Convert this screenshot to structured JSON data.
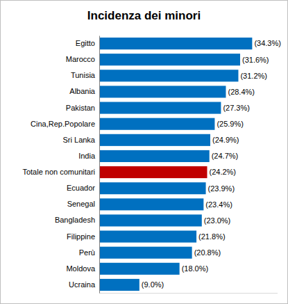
{
  "chart_data": {
    "type": "bar",
    "title": "Incidenza dei minori",
    "orientation": "horizontal",
    "categories": [
      "Egitto",
      "Marocco",
      "Tunisia",
      "Albania",
      "Pakistan",
      "Cina,Rep.Popolare",
      "Sri Lanka",
      "India",
      "Totale non comunitari",
      "Ecuador",
      "Senegal",
      "Bangladesh",
      "Filippine",
      "Perù",
      "Moldova",
      "Ucraina"
    ],
    "values": [
      34.3,
      31.6,
      31.2,
      28.4,
      27.3,
      25.9,
      24.9,
      24.7,
      24.2,
      23.9,
      23.4,
      23.0,
      21.8,
      20.8,
      18.0,
      9.0
    ],
    "value_labels": [
      "(34.3%)",
      "(31.6%)",
      "(31.2%)",
      "(28.4%)",
      "(27.3%)",
      "(25.9%)",
      "(24.9%)",
      "(24.7%)",
      "(24.2%)",
      "(23.9%)",
      "(23.4%)",
      "(23.0%)",
      "(21.8%)",
      "(20.8%)",
      "(18.0%)",
      "(9.0%)"
    ],
    "colors": [
      "#0070c0",
      "#0070c0",
      "#0070c0",
      "#0070c0",
      "#0070c0",
      "#0070c0",
      "#0070c0",
      "#0070c0",
      "#c00000",
      "#0070c0",
      "#0070c0",
      "#0070c0",
      "#0070c0",
      "#0070c0",
      "#0070c0",
      "#0070c0"
    ],
    "xlim": [
      0,
      40
    ],
    "data_labels": true,
    "tick_labels": "y",
    "grid": false
  }
}
